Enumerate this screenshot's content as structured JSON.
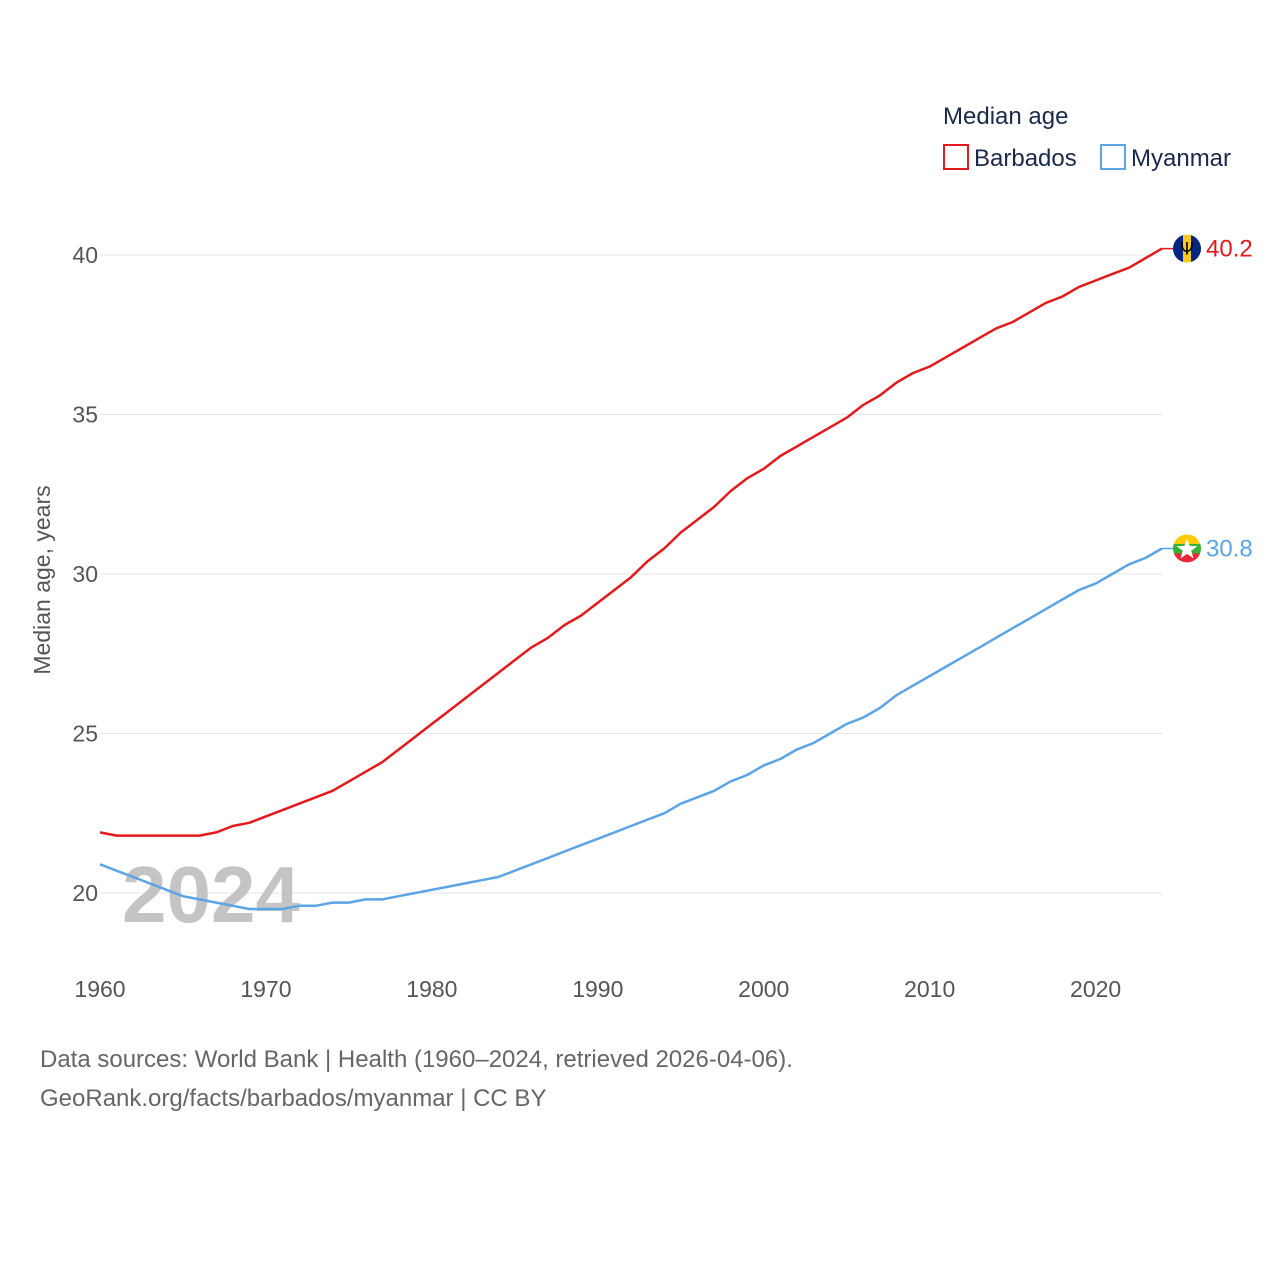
{
  "chart_data": {
    "type": "line",
    "title": "",
    "legend_title": "Median age",
    "ylabel": "Median age, years",
    "xlabel": "",
    "xlim": [
      1960,
      2024
    ],
    "ylim": [
      18.5,
      41
    ],
    "x_ticks": [
      1960,
      1970,
      1980,
      1990,
      2000,
      2010,
      2020
    ],
    "y_ticks": [
      20,
      25,
      30,
      35,
      40
    ],
    "grid": true,
    "legend_position": "top-right",
    "year_label": "2024",
    "x": [
      1960,
      1961,
      1962,
      1963,
      1964,
      1965,
      1966,
      1967,
      1968,
      1969,
      1970,
      1971,
      1972,
      1973,
      1974,
      1975,
      1976,
      1977,
      1978,
      1979,
      1980,
      1981,
      1982,
      1983,
      1984,
      1985,
      1986,
      1987,
      1988,
      1989,
      1990,
      1991,
      1992,
      1993,
      1994,
      1995,
      1996,
      1997,
      1998,
      1999,
      2000,
      2001,
      2002,
      2003,
      2004,
      2005,
      2006,
      2007,
      2008,
      2009,
      2010,
      2011,
      2012,
      2013,
      2014,
      2015,
      2016,
      2017,
      2018,
      2019,
      2020,
      2021,
      2022,
      2023,
      2024
    ],
    "series": [
      {
        "name": "Barbados",
        "color": "#e31a1c",
        "end_label": "40.2",
        "flag": "barbados-flag-icon",
        "values": [
          21.9,
          21.8,
          21.8,
          21.8,
          21.8,
          21.8,
          21.8,
          21.9,
          22.1,
          22.2,
          22.4,
          22.6,
          22.8,
          23.0,
          23.2,
          23.5,
          23.8,
          24.1,
          24.5,
          24.9,
          25.3,
          25.7,
          26.1,
          26.5,
          26.9,
          27.3,
          27.7,
          28.0,
          28.4,
          28.7,
          29.1,
          29.5,
          29.9,
          30.4,
          30.8,
          31.3,
          31.7,
          32.1,
          32.6,
          33.0,
          33.3,
          33.7,
          34.0,
          34.3,
          34.6,
          34.9,
          35.3,
          35.6,
          36.0,
          36.3,
          36.5,
          36.8,
          37.1,
          37.4,
          37.7,
          37.9,
          38.2,
          38.5,
          38.7,
          39.0,
          39.2,
          39.4,
          39.6,
          39.9,
          40.2
        ]
      },
      {
        "name": "Myanmar",
        "color": "#5ba4e5",
        "end_label": "30.8",
        "flag": "myanmar-flag-icon",
        "values": [
          20.9,
          20.7,
          20.5,
          20.3,
          20.1,
          19.9,
          19.8,
          19.7,
          19.6,
          19.5,
          19.5,
          19.5,
          19.6,
          19.6,
          19.7,
          19.7,
          19.8,
          19.8,
          19.9,
          20.0,
          20.1,
          20.2,
          20.3,
          20.4,
          20.5,
          20.7,
          20.9,
          21.1,
          21.3,
          21.5,
          21.7,
          21.9,
          22.1,
          22.3,
          22.5,
          22.8,
          23.0,
          23.2,
          23.5,
          23.7,
          24.0,
          24.2,
          24.5,
          24.7,
          25.0,
          25.3,
          25.5,
          25.8,
          26.2,
          26.5,
          26.8,
          27.1,
          27.4,
          27.7,
          28.0,
          28.3,
          28.6,
          28.9,
          29.2,
          29.5,
          29.7,
          30.0,
          30.3,
          30.5,
          30.8
        ]
      }
    ]
  },
  "footer": {
    "line1": "Data sources: World Bank | Health (1960–2024, retrieved 2026-04-06).",
    "line2": "GeoRank.org/facts/barbados/myanmar | CC BY"
  }
}
